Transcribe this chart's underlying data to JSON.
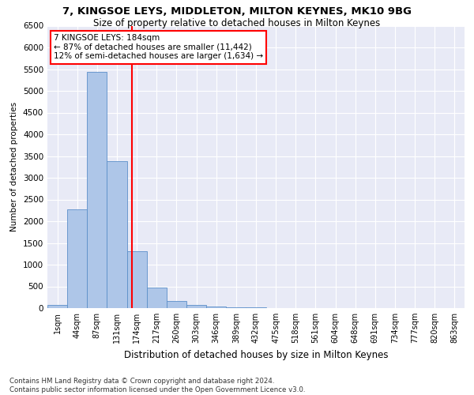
{
  "title_line1": "7, KINGSOE LEYS, MIDDLETON, MILTON KEYNES, MK10 9BG",
  "title_line2": "Size of property relative to detached houses in Milton Keynes",
  "xlabel": "Distribution of detached houses by size in Milton Keynes",
  "ylabel": "Number of detached properties",
  "footnote": "Contains HM Land Registry data © Crown copyright and database right 2024.\nContains public sector information licensed under the Open Government Licence v3.0.",
  "bar_labels": [
    "1sqm",
    "44sqm",
    "87sqm",
    "131sqm",
    "174sqm",
    "217sqm",
    "260sqm",
    "303sqm",
    "346sqm",
    "389sqm",
    "432sqm",
    "475sqm",
    "518sqm",
    "561sqm",
    "604sqm",
    "648sqm",
    "691sqm",
    "734sqm",
    "777sqm",
    "820sqm",
    "863sqm"
  ],
  "bar_values": [
    65,
    2280,
    5430,
    3390,
    1310,
    480,
    160,
    80,
    40,
    20,
    10,
    5,
    3,
    2,
    1,
    0,
    0,
    0,
    0,
    0,
    0
  ],
  "bar_color": "#aec6e8",
  "bar_edgecolor": "#5b8fc9",
  "bg_color": "#e8eaf6",
  "grid_color": "#ffffff",
  "vline_color": "red",
  "annotation_text": "7 KINGSOE LEYS: 184sqm\n← 87% of detached houses are smaller (11,442)\n12% of semi-detached houses are larger (1,634) →",
  "annotation_box_color": "white",
  "annotation_box_edgecolor": "red",
  "ylim": [
    0,
    6500
  ],
  "yticks": [
    0,
    500,
    1000,
    1500,
    2000,
    2500,
    3000,
    3500,
    4000,
    4500,
    5000,
    5500,
    6000,
    6500
  ],
  "vline_pos": 4.25
}
